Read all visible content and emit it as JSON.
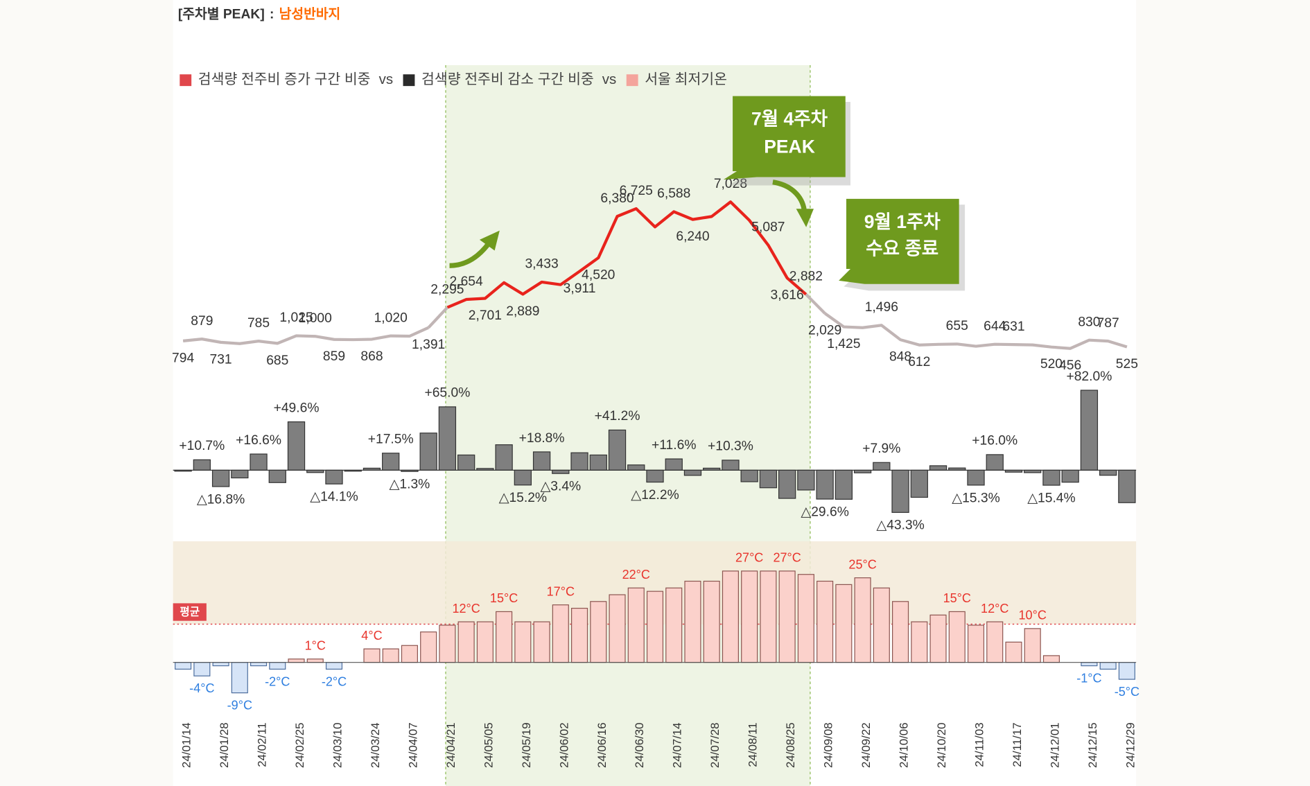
{
  "header": {
    "title": "[주차별 PEAK]",
    "separator": ":",
    "subtitle": "남성반바지"
  },
  "legend": {
    "separator": "vs",
    "items": [
      {
        "name": "검색량 전주비 증가 구간 비중",
        "color": "#e0474c"
      },
      {
        "name": "검색량 전주비 감소 구간 비중",
        "color": "#2b2b2b"
      },
      {
        "name": "서울 최저기온",
        "color": "#f4a49c"
      }
    ]
  },
  "annotations": [
    {
      "lines": [
        "7월 4주차",
        "PEAK"
      ]
    },
    {
      "lines": [
        "9월 1주차",
        "수요 종료"
      ]
    }
  ],
  "chart_data": [
    {
      "type": "line",
      "ylim": [
        350,
        8590
      ],
      "series": [
        {
          "color": "#c1b5b5",
          "values": [
            794,
            879,
            731,
            673,
            785,
            685,
            1025,
            1000,
            859,
            850,
            868,
            1020,
            1007,
            1391,
            null,
            null,
            null,
            null,
            null,
            null,
            null,
            null,
            null,
            null,
            null,
            null,
            null,
            null,
            null,
            null,
            null,
            null,
            null,
            null,
            2029,
            1425,
            1387,
            1496,
            848,
            612,
            640,
            655,
            555,
            644,
            631,
            615,
            520,
            456,
            830,
            787,
            525
          ],
          "value_labels": [
            "794",
            "879",
            "731",
            null,
            "785",
            "685",
            "1,025",
            "1,000",
            "859",
            null,
            "868",
            "1,020",
            null,
            "1,391",
            null,
            null,
            null,
            null,
            null,
            null,
            null,
            null,
            null,
            null,
            null,
            null,
            null,
            null,
            null,
            null,
            null,
            null,
            null,
            null,
            "2,029",
            "1,425",
            null,
            "1,496",
            "848",
            "612",
            null,
            "655",
            null,
            "644",
            "631",
            null,
            "520",
            "456",
            "830",
            "787",
            "525"
          ]
        },
        {
          "color": "#e8231c",
          "values": [
            null,
            null,
            null,
            null,
            null,
            null,
            null,
            null,
            null,
            null,
            null,
            null,
            null,
            null,
            2295,
            2654,
            2701,
            3406,
            2889,
            3433,
            3316,
            3911,
            4520,
            6380,
            6725,
            5905,
            6588,
            6240,
            6372,
            7028,
            6200,
            5087,
            3616,
            2882,
            null,
            null,
            null,
            null,
            null,
            null,
            null,
            null,
            null,
            null,
            null,
            null,
            null,
            null,
            null,
            null,
            null
          ],
          "value_labels": [
            null,
            null,
            null,
            null,
            null,
            null,
            null,
            null,
            null,
            null,
            null,
            null,
            null,
            null,
            "2,295",
            "2,654",
            "2,701",
            null,
            "2,889",
            "3,433",
            null,
            "3,911",
            "4,520",
            "6,380",
            "6,725",
            null,
            "6,588",
            "6,240",
            null,
            "7,028",
            null,
            "5,087",
            "3,616",
            "2,882",
            null,
            null,
            null,
            null,
            null,
            null,
            null,
            null,
            null,
            null,
            null,
            null,
            null,
            null,
            null,
            null,
            null
          ]
        }
      ]
    },
    {
      "type": "bar",
      "ylim": [
        -66,
        101
      ],
      "color": "#7f7f7f",
      "values": [
        -1.0,
        10.7,
        -16.8,
        -7.9,
        16.6,
        -12.7,
        49.6,
        -2.4,
        -14.1,
        -1.0,
        2.1,
        17.5,
        -1.3,
        38.1,
        65.0,
        15.6,
        1.8,
        26.1,
        -15.2,
        18.8,
        -3.4,
        17.9,
        15.6,
        41.2,
        5.4,
        -12.2,
        11.6,
        -5.3,
        2.1,
        10.3,
        -11.8,
        -18.0,
        -28.9,
        -20.3,
        -29.6,
        -29.8,
        -2.7,
        7.9,
        -43.3,
        -27.8,
        4.6,
        2.3,
        -15.3,
        16.0,
        -2.0,
        -2.5,
        -15.4,
        -12.3,
        82.0,
        -5.2,
        -33.3
      ],
      "value_labels": [
        null,
        "+10.7%",
        "△16.8%",
        null,
        "+16.6%",
        null,
        "+49.6%",
        null,
        "△14.1%",
        null,
        null,
        "+17.5%",
        "△1.3%",
        null,
        "+65.0%",
        null,
        null,
        null,
        "△15.2%",
        "+18.8%",
        "△3.4%",
        null,
        null,
        "+41.2%",
        null,
        "△12.2%",
        "+11.6%",
        null,
        null,
        "+10.3%",
        null,
        null,
        null,
        null,
        "△29.6%",
        null,
        null,
        "+7.9%",
        "△43.3%",
        null,
        null,
        null,
        "△15.3%",
        "+16.0%",
        null,
        null,
        "△15.4%",
        null,
        "+82.0%",
        null,
        null
      ]
    },
    {
      "type": "temperature",
      "ylim": [
        -15.3,
        35.8
      ],
      "color": "#f4a49c",
      "average": {
        "value": 11.3,
        "label": "평균"
      },
      "categories": [
        "24/01/14",
        null,
        "24/01/28",
        null,
        "24/02/11",
        null,
        "24/02/25",
        null,
        "24/03/10",
        null,
        "24/03/24",
        null,
        "24/04/07",
        null,
        "24/04/21",
        null,
        "24/05/05",
        null,
        "24/05/19",
        null,
        "24/06/02",
        null,
        "24/06/16",
        null,
        "24/06/30",
        null,
        "24/07/14",
        null,
        "24/07/28",
        null,
        "24/08/11",
        null,
        "24/08/25",
        null,
        "24/09/08",
        null,
        "24/09/22",
        null,
        "24/10/06",
        null,
        "24/10/20",
        null,
        "24/11/03",
        null,
        "24/11/17",
        null,
        "24/12/01",
        null,
        "24/12/15",
        null,
        "24/12/29"
      ],
      "values": [
        -2,
        -4,
        -1,
        -9,
        -1,
        -2,
        1,
        1,
        -2,
        0,
        4,
        4,
        5,
        9,
        11,
        12,
        12,
        15,
        12,
        12,
        17,
        16,
        18,
        20,
        22,
        21,
        22,
        24,
        24,
        27,
        27,
        27,
        27,
        26,
        24,
        23,
        25,
        22,
        18,
        12,
        14,
        15,
        11,
        12,
        6,
        10,
        2,
        0,
        -1,
        -2,
        -5
      ],
      "value_labels": [
        null,
        "-4°C",
        null,
        "-9°C",
        null,
        "-2°C",
        null,
        "1°C",
        "-2°C",
        null,
        "4°C",
        null,
        null,
        null,
        null,
        "12°C",
        null,
        "15°C",
        null,
        null,
        "17°C",
        null,
        null,
        null,
        "22°C",
        null,
        null,
        null,
        null,
        null,
        "27°C",
        null,
        "27°C",
        null,
        null,
        null,
        "25°C",
        null,
        null,
        null,
        null,
        "15°C",
        null,
        "12°C",
        null,
        "10°C",
        null,
        null,
        "-1°C",
        null,
        "-5°C"
      ]
    }
  ]
}
